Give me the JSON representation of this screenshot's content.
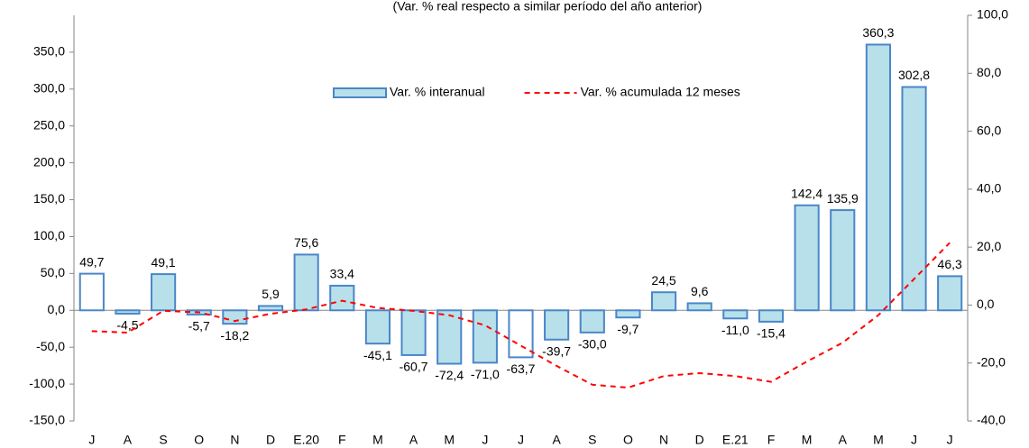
{
  "chart_data": {
    "type": "bar",
    "title": "(Var. % real respecto a similar período del año anterior)",
    "categories": [
      "J",
      "A",
      "S",
      "O",
      "N",
      "D",
      "E.20",
      "F",
      "M",
      "A",
      "M",
      "J",
      "J",
      "A",
      "S",
      "O",
      "N",
      "D",
      "E.21",
      "F",
      "M",
      "A",
      "M",
      "J",
      "J"
    ],
    "ylim": [
      -150,
      400
    ],
    "yticks": [
      {
        "value": -150,
        "label": "-150,0"
      },
      {
        "value": -100,
        "label": "-100,0"
      },
      {
        "value": -50,
        "label": "-50,0"
      },
      {
        "value": 0,
        "label": "0,0"
      },
      {
        "value": 50,
        "label": "50,0"
      },
      {
        "value": 100,
        "label": "100,0"
      },
      {
        "value": 150,
        "label": "150,0"
      },
      {
        "value": 200,
        "label": "200,0"
      },
      {
        "value": 250,
        "label": "250,0"
      },
      {
        "value": 300,
        "label": "300,0"
      },
      {
        "value": 350,
        "label": "350,0"
      }
    ],
    "y2lim": [
      -40,
      100
    ],
    "y2ticks": [
      {
        "value": -40,
        "label": "-40,0"
      },
      {
        "value": -20,
        "label": "-20,0"
      },
      {
        "value": 0,
        "label": "0,0"
      },
      {
        "value": 20,
        "label": "20,0"
      },
      {
        "value": 40,
        "label": "40,0"
      },
      {
        "value": 60,
        "label": "60,0"
      },
      {
        "value": 80,
        "label": "80,0"
      },
      {
        "value": 100,
        "label": "100,0"
      }
    ],
    "legend": "top-center",
    "series": [
      {
        "name": "Var. % interanual",
        "type": "bar",
        "color": "#b7e0ea",
        "edge_color": "#4a86c8",
        "colors": [
          "#ffffff",
          "#b7e0ea",
          "#b7e0ea",
          "#b7e0ea",
          "#b7e0ea",
          "#b7e0ea",
          "#b7e0ea",
          "#b7e0ea",
          "#b7e0ea",
          "#b7e0ea",
          "#b7e0ea",
          "#b7e0ea",
          "#ffffff",
          "#b7e0ea",
          "#b7e0ea",
          "#b7e0ea",
          "#b7e0ea",
          "#b7e0ea",
          "#b7e0ea",
          "#b7e0ea",
          "#b7e0ea",
          "#b7e0ea",
          "#b7e0ea",
          "#b7e0ea",
          "#b7e0ea"
        ],
        "values": [
          49.7,
          -4.5,
          49.1,
          -5.7,
          -18.2,
          5.9,
          75.6,
          33.4,
          -45.1,
          -60.7,
          -72.4,
          -71.0,
          -63.7,
          -39.7,
          -30.0,
          -9.7,
          24.5,
          9.6,
          -11.0,
          -15.4,
          142.4,
          135.9,
          360.3,
          302.8,
          46.3
        ],
        "value_labels": [
          "49,7",
          "-4,5",
          "49,1",
          "-5,7",
          "-18,2",
          "5,9",
          "75,6",
          "33,4",
          "-45,1",
          "-60,7",
          "-72,4",
          "-71,0",
          "-63,7",
          "-39,7",
          "-30,0",
          "-9,7",
          "24,5",
          "9,6",
          "-11,0",
          "-15,4",
          "142,4",
          "135,9",
          "360,3",
          "302,8",
          "46,3"
        ]
      },
      {
        "name": "Var. % acumulada 12 meses",
        "type": "line",
        "color": "#ff0000",
        "dashed": true,
        "axis": "y2",
        "values": [
          -9,
          -9.5,
          -2,
          -2.5,
          -5.5,
          -3,
          -1.5,
          1.5,
          -1,
          -2,
          -3.5,
          -7,
          -14,
          -21,
          -27.5,
          -28.5,
          -24.5,
          -23.5,
          -24.5,
          -26.5,
          -19.5,
          -13,
          -3.5,
          9,
          21.5
        ]
      }
    ]
  }
}
